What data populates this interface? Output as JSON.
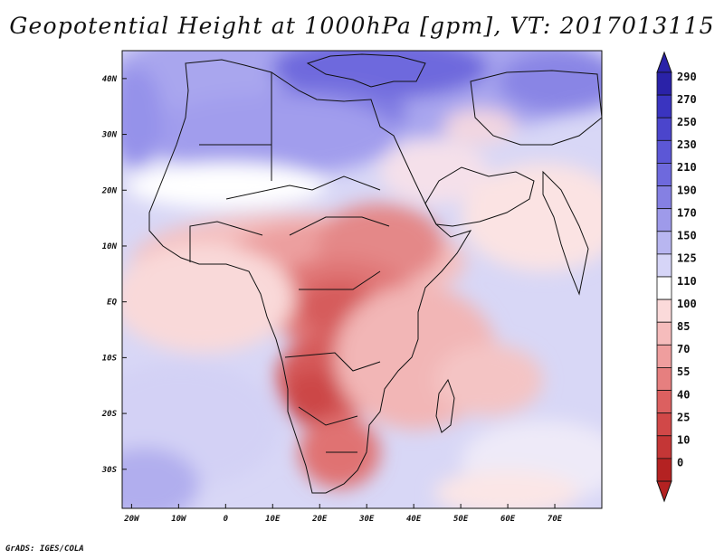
{
  "title": "Geopotential Height at 1000hPa [gpm], VT: 2017013115",
  "credit": "GrADS: IGES/COLA",
  "map": {
    "lon_range": [
      -22,
      80
    ],
    "lat_range": [
      -37,
      45
    ],
    "x_ticks": [
      "20W",
      "10W",
      "0",
      "10E",
      "20E",
      "30E",
      "40E",
      "50E",
      "60E",
      "70E"
    ],
    "x_tick_values": [
      -20,
      -10,
      0,
      10,
      20,
      30,
      40,
      50,
      60,
      70
    ],
    "y_ticks": [
      "40N",
      "30N",
      "20N",
      "10N",
      "EQ",
      "10S",
      "20S",
      "30S"
    ],
    "y_tick_values": [
      40,
      30,
      20,
      10,
      0,
      -10,
      -20,
      -30
    ]
  },
  "colorbar": {
    "labels": [
      "290",
      "270",
      "250",
      "230",
      "210",
      "190",
      "170",
      "150",
      "125",
      "110",
      "100",
      "85",
      "70",
      "55",
      "40",
      "25",
      "10",
      "0"
    ],
    "colors": [
      "#2a22a8",
      "#3a34c0",
      "#4b45cc",
      "#5c57d6",
      "#6e69dd",
      "#8580e3",
      "#9e9aea",
      "#b8b6f0",
      "#d6d5f7",
      "#ffffff",
      "#fbdada",
      "#f6bcbc",
      "#ef9e9e",
      "#e67f7f",
      "#dc6060",
      "#d14848",
      "#c43636",
      "#b42222"
    ]
  }
}
